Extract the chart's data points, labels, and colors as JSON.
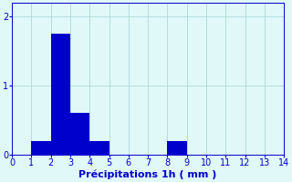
{
  "bar_left_edges": [
    0,
    1,
    2,
    3,
    4,
    5,
    6,
    7,
    8,
    9,
    10,
    11,
    12,
    13
  ],
  "bar_heights": [
    0,
    0.2,
    1.75,
    0.6,
    0.2,
    0,
    0,
    0,
    0.2,
    0,
    0,
    0,
    0,
    0
  ],
  "bar_color": "#0000cc",
  "bar_edge_color": "#0000cc",
  "xlim": [
    0,
    14
  ],
  "ylim": [
    0,
    2.2
  ],
  "yticks": [
    0,
    1,
    2
  ],
  "xticks": [
    0,
    1,
    2,
    3,
    4,
    5,
    6,
    7,
    8,
    9,
    10,
    11,
    12,
    13,
    14
  ],
  "xlabel": "Précipitations 1h ( mm )",
  "xlabel_color": "#0000cc",
  "xlabel_fontsize": 8,
  "tick_color": "#0000cc",
  "tick_fontsize": 7,
  "background_color": "#e0f8f8",
  "grid_color": "#b0d8d8",
  "bar_width": 1.0,
  "figwidth": 3.2,
  "figheight": 2.0,
  "dpi": 100
}
